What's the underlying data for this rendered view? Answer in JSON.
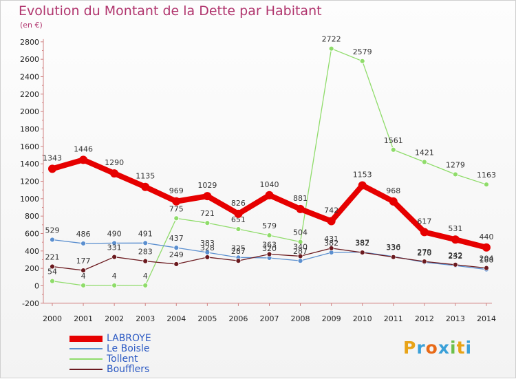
{
  "title": "Evolution du Montant de la Dette par Habitant",
  "subtitle": "(en €)",
  "logo": "Proxiti",
  "chart_data": {
    "type": "line",
    "x": [
      "2000",
      "2001",
      "2002",
      "2003",
      "2004",
      "2005",
      "2006",
      "2007",
      "2008",
      "2009",
      "2010",
      "2011",
      "2012",
      "2013",
      "2014"
    ],
    "ylim": [
      -200,
      2800
    ],
    "yticks": [
      "-200",
      "0",
      "200",
      "400",
      "600",
      "800",
      "1000",
      "1200",
      "1400",
      "1600",
      "1800",
      "2000",
      "2200",
      "2400",
      "2600",
      "2800"
    ],
    "grid": false,
    "legend_position": "bottom-left",
    "series": [
      {
        "name": "LABROYE",
        "color": "#e60000",
        "values": [
          1343,
          1446,
          1290,
          1135,
          969,
          1029,
          826,
          1040,
          881,
          742,
          1153,
          968,
          617,
          531,
          440
        ]
      },
      {
        "name": "Le Boisle",
        "color": "#5b8fcf",
        "values": [
          529,
          486,
          490,
          491,
          437,
          383,
          325,
          320,
          287,
          382,
          387,
          336,
          270,
          232,
          188
        ]
      },
      {
        "name": "Tollent",
        "color": "#8fdc6a",
        "values": [
          54,
          4,
          4,
          4,
          775,
          721,
          651,
          579,
          504,
          2722,
          2579,
          1561,
          1421,
          1279,
          1163
        ]
      },
      {
        "name": "Boufflers",
        "color": "#6b1a1f",
        "values": [
          221,
          177,
          331,
          283,
          249,
          328,
          287,
          363,
          340,
          431,
          382,
          330,
          279,
          242,
          204
        ]
      }
    ]
  }
}
